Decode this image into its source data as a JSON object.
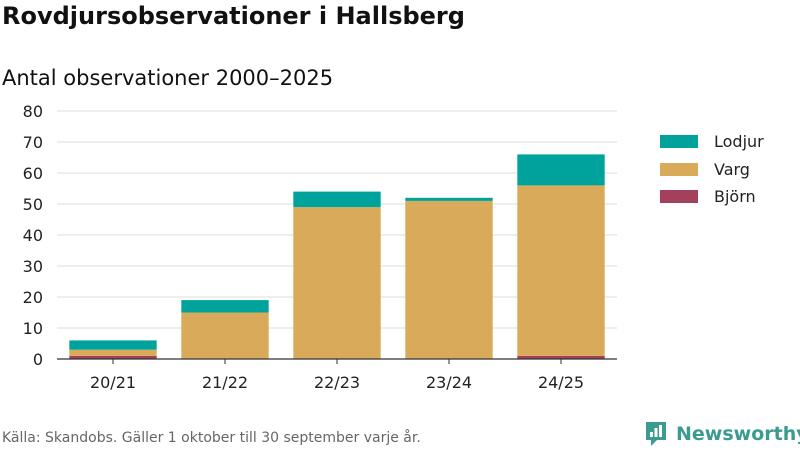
{
  "title": "Rovdjursobservationer i Hallsberg",
  "subtitle": "Antal observationer 2000–2025",
  "source": "Källa: Skandobs. Gäller 1 oktober till 30 september varje år.",
  "brand": "Newsworthy",
  "brand_icon": "newsworthy-logo-icon",
  "chart_data": {
    "type": "bar",
    "stacked": true,
    "title": "Rovdjursobservationer i Hallsberg",
    "subtitle": "Antal observationer 2000–2025",
    "xlabel": "",
    "ylabel": "",
    "categories": [
      "20/21",
      "21/22",
      "22/23",
      "23/24",
      "24/25"
    ],
    "series": [
      {
        "name": "Björn",
        "color": "#a3405c",
        "values": [
          1,
          0,
          0,
          0,
          1
        ]
      },
      {
        "name": "Varg",
        "color": "#d9aa5a",
        "values": [
          2,
          15,
          49,
          51,
          55
        ]
      },
      {
        "name": "Lodjur",
        "color": "#00a39b",
        "values": [
          3,
          4,
          5,
          1,
          10
        ]
      }
    ],
    "legend_order": [
      "Lodjur",
      "Varg",
      "Björn"
    ],
    "ylim": [
      0,
      80
    ],
    "yticks": [
      0,
      10,
      20,
      30,
      40,
      50,
      60,
      70,
      80
    ],
    "grid": true,
    "legend_position": "right"
  }
}
